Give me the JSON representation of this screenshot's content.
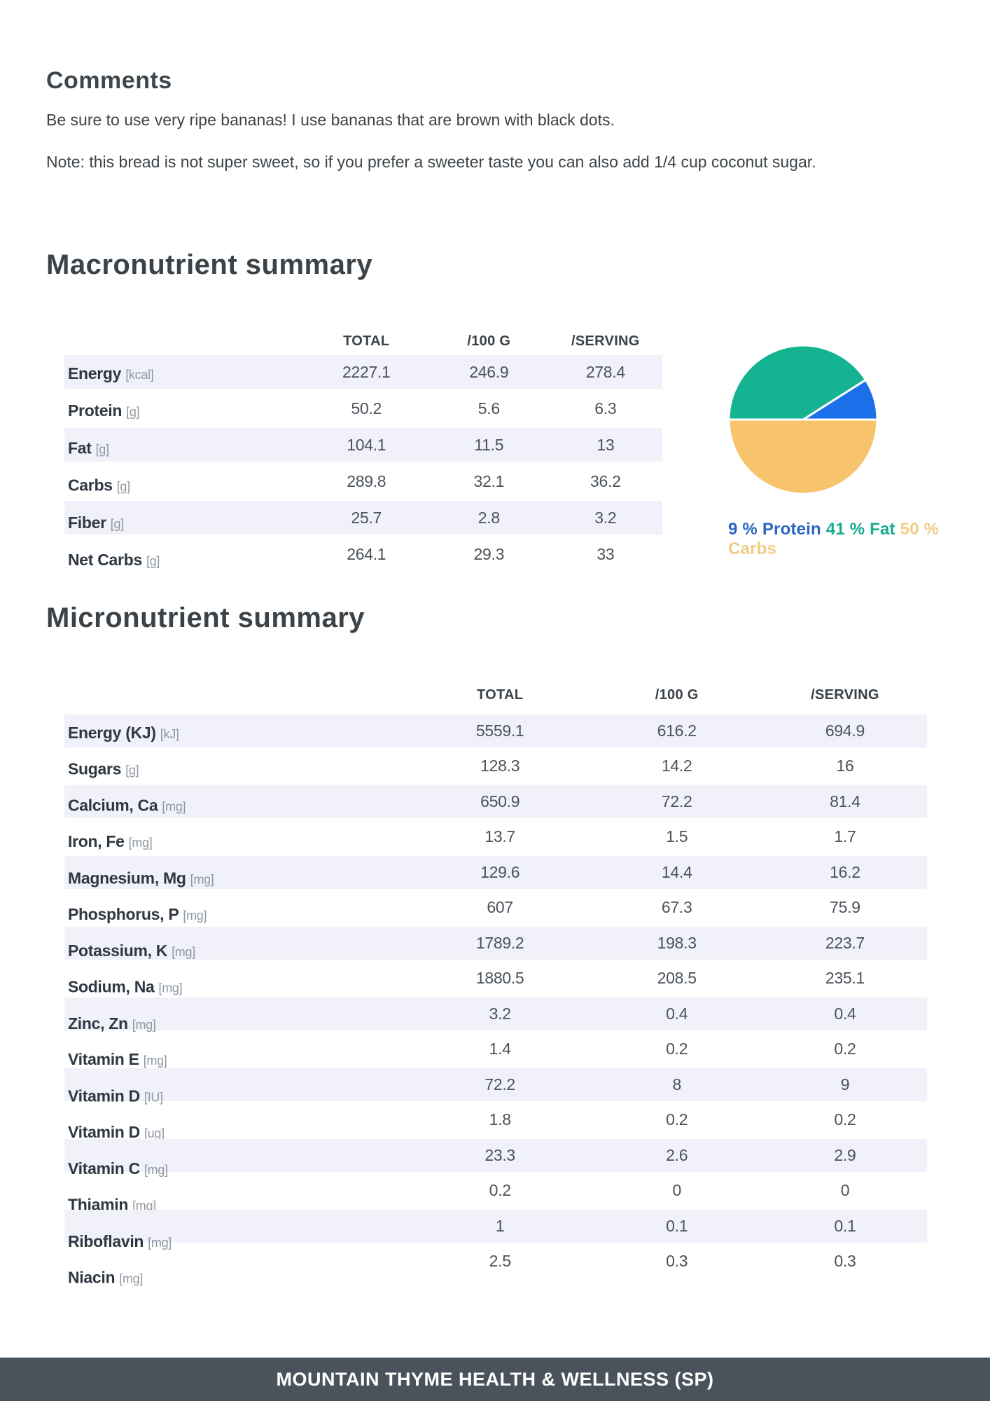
{
  "comments": {
    "title": "Comments",
    "paragraphs": [
      "Be sure to use very ripe bananas! I use bananas that are brown with black dots.",
      "Note: this bread is not super sweet, so if you prefer a sweeter taste you can also add 1/4 cup coconut sugar."
    ]
  },
  "macro": {
    "title": "Macronutrient summary",
    "columns": [
      "TOTAL",
      "/100 G",
      "/SERVING"
    ],
    "rows": [
      {
        "label": "Energy",
        "unit": "[kcal]",
        "values": [
          "2227.1",
          "246.9",
          "278.4"
        ]
      },
      {
        "label": "Protein",
        "unit": "[g]",
        "values": [
          "50.2",
          "5.6",
          "6.3"
        ]
      },
      {
        "label": "Fat",
        "unit": "[g]",
        "values": [
          "104.1",
          "11.5",
          "13"
        ]
      },
      {
        "label": "Carbs",
        "unit": "[g]",
        "values": [
          "289.8",
          "32.1",
          "36.2"
        ]
      },
      {
        "label": "Fiber",
        "unit": "[g]",
        "values": [
          "25.7",
          "2.8",
          "3.2"
        ]
      },
      {
        "label": "Net Carbs",
        "unit": "[g]",
        "values": [
          "264.1",
          "29.3",
          "33"
        ]
      }
    ]
  },
  "chart_data": {
    "type": "pie",
    "labels": [
      "Protein",
      "Fat",
      "Carbs"
    ],
    "values": [
      9,
      41,
      50
    ],
    "colors": [
      "#1b6fe8",
      "#14b492",
      "#f7c36b"
    ],
    "caption": "9 % Protein 41 % Fat 50 % Carbs",
    "start_angle_deg": 0,
    "direction": "counterclockwise",
    "legend_position": "below"
  },
  "pie_caption": [
    {
      "text": "9 % Protein",
      "color": "#2a66bf"
    },
    {
      "text": "41 % Fat",
      "color": "#16ac8d"
    },
    {
      "text": "50 % Carbs",
      "color": "#eecd86"
    }
  ],
  "micro": {
    "title": "Micronutrient summary",
    "columns": [
      "TOTAL",
      "/100 G",
      "/SERVING"
    ],
    "rows": [
      {
        "label": "Energy (KJ)",
        "unit": "[kJ]",
        "values": [
          "5559.1",
          "616.2",
          "694.9"
        ]
      },
      {
        "label": "Sugars",
        "unit": "[g]",
        "values": [
          "128.3",
          "14.2",
          "16"
        ]
      },
      {
        "label": "Calcium, Ca",
        "unit": "[mg]",
        "values": [
          "650.9",
          "72.2",
          "81.4"
        ]
      },
      {
        "label": "Iron, Fe",
        "unit": "[mg]",
        "values": [
          "13.7",
          "1.5",
          "1.7"
        ]
      },
      {
        "label": "Magnesium, Mg",
        "unit": "[mg]",
        "values": [
          "129.6",
          "14.4",
          "16.2"
        ]
      },
      {
        "label": "Phosphorus, P",
        "unit": "[mg]",
        "values": [
          "607",
          "67.3",
          "75.9"
        ]
      },
      {
        "label": "Potassium, K",
        "unit": "[mg]",
        "values": [
          "1789.2",
          "198.3",
          "223.7"
        ]
      },
      {
        "label": "Sodium, Na",
        "unit": "[mg]",
        "values": [
          "1880.5",
          "208.5",
          "235.1"
        ]
      },
      {
        "label": "Zinc, Zn",
        "unit": "[mg]",
        "values": [
          "3.2",
          "0.4",
          "0.4"
        ]
      },
      {
        "label": "Vitamin E",
        "unit": "[mg]",
        "values": [
          "1.4",
          "0.2",
          "0.2"
        ]
      },
      {
        "label": "Vitamin D",
        "unit": "[IU]",
        "values": [
          "72.2",
          "8",
          "9"
        ]
      },
      {
        "label": "Vitamin D",
        "unit": "[ug]",
        "values": [
          "1.8",
          "0.2",
          "0.2"
        ]
      },
      {
        "label": "Vitamin C",
        "unit": "[mg]",
        "values": [
          "23.3",
          "2.6",
          "2.9"
        ]
      },
      {
        "label": "Thiamin",
        "unit": "[mg]",
        "values": [
          "0.2",
          "0",
          "0"
        ]
      },
      {
        "label": "Riboflavin",
        "unit": "[mg]",
        "values": [
          "1",
          "0.1",
          "0.1"
        ]
      },
      {
        "label": "Niacin",
        "unit": "[mg]",
        "values": [
          "2.5",
          "0.3",
          "0.3"
        ]
      }
    ]
  },
  "footer": {
    "text": "MOUNTAIN THYME HEALTH & WELLNESS (SP)"
  }
}
